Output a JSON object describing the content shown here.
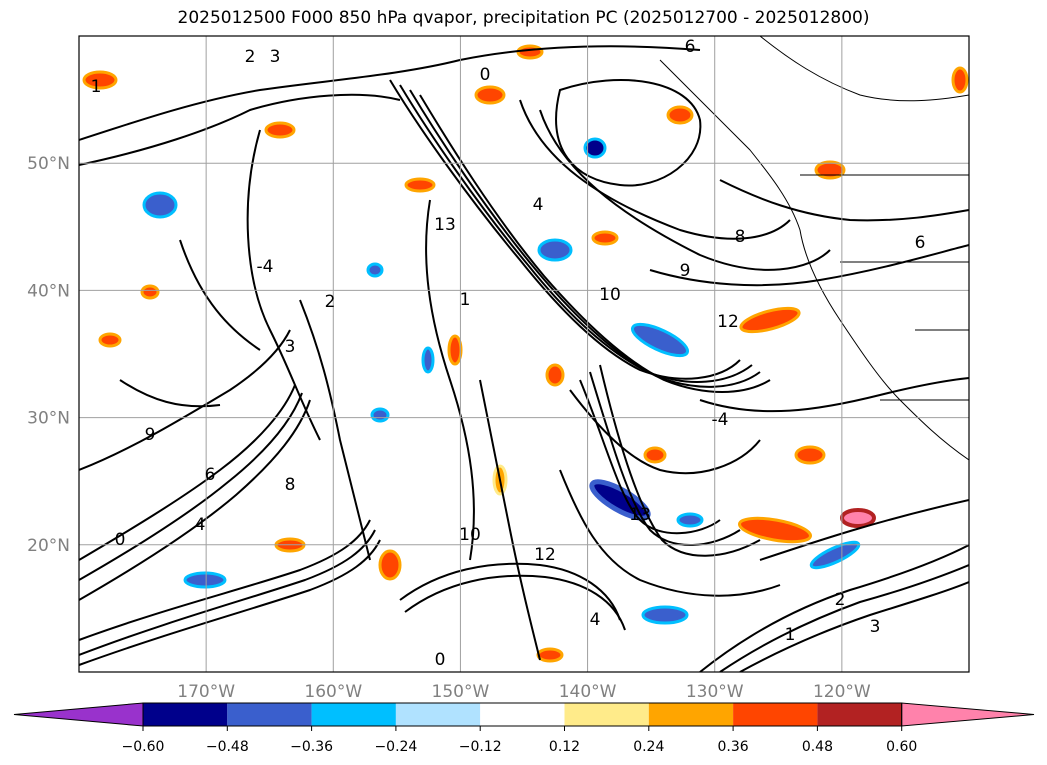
{
  "title": "2025012500 F000 850 hPa qvapor, precipitation PC (2025012700 - 2025012800)",
  "map": {
    "lon_range": [
      -180,
      -110
    ],
    "lat_range": [
      10,
      60
    ],
    "lon_ticks": [
      {
        "value": -170,
        "label": "170°W"
      },
      {
        "value": -160,
        "label": "160°W"
      },
      {
        "value": -150,
        "label": "150°W"
      },
      {
        "value": -140,
        "label": "140°W"
      },
      {
        "value": -130,
        "label": "130°W"
      },
      {
        "value": -120,
        "label": "120°W"
      }
    ],
    "lat_ticks": [
      {
        "value": 20,
        "label": "20°N"
      },
      {
        "value": 30,
        "label": "30°N"
      },
      {
        "value": 40,
        "label": "40°N"
      },
      {
        "value": 50,
        "label": "50°N"
      }
    ],
    "gridlines": true,
    "contour_labels": [
      "2",
      "3",
      "1",
      "0",
      "4",
      "6",
      "8",
      "9",
      "10",
      "12",
      "13",
      "-4"
    ]
  },
  "colorbar": {
    "ticks": [
      "−0.60",
      "−0.48",
      "−0.36",
      "−0.24",
      "−0.12",
      "0.12",
      "0.24",
      "0.36",
      "0.48",
      "0.60"
    ],
    "colors": [
      "#9932cc",
      "#00008b",
      "#3a5fcd",
      "#00bfff",
      "#b0e2ff",
      "#ffffff",
      "#ffeb8a",
      "#ffa500",
      "#ff4500",
      "#b22222",
      "#ff82ab"
    ],
    "extend": "both"
  }
}
